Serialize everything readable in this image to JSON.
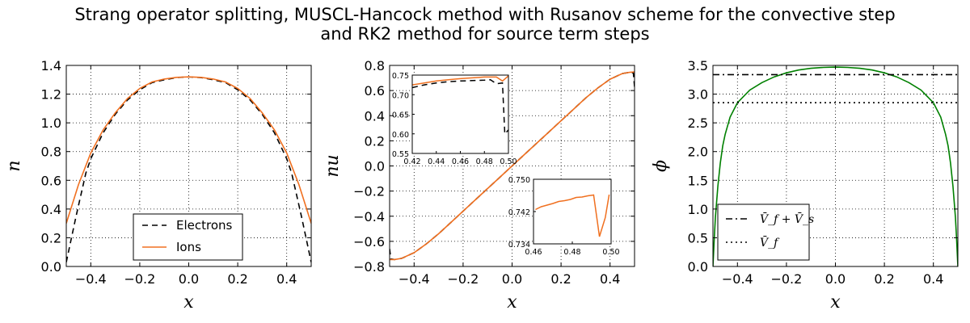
{
  "figure": {
    "title": "Strang operator splitting, MUSCL-Hancock method with Rusanov scheme for the convective step\nand RK2 method for source term steps"
  },
  "chart_data": [
    {
      "type": "line",
      "xlabel": "x",
      "ylabel": "n",
      "xlim": [
        -0.5,
        0.5
      ],
      "ylim": [
        0.0,
        1.4
      ],
      "xticks": [
        "−0.4",
        "−0.2",
        "0.0",
        "0.2",
        "0.4"
      ],
      "xtick_values": [
        -0.4,
        -0.2,
        0.0,
        0.2,
        0.4
      ],
      "yticks": [
        "0.0",
        "0.2",
        "0.4",
        "0.6",
        "0.8",
        "1.0",
        "1.2",
        "1.4"
      ],
      "ytick_values": [
        0.0,
        0.2,
        0.4,
        0.6,
        0.8,
        1.0,
        1.2,
        1.4
      ],
      "grid": true,
      "legend": {
        "position": "bottom-center",
        "entries": [
          "Electrons",
          "Ions"
        ]
      },
      "series": [
        {
          "name": "Electrons",
          "color": "#000000",
          "style": "dashed",
          "x": [
            -0.5,
            -0.46,
            -0.42,
            -0.4,
            -0.35,
            -0.3,
            -0.25,
            -0.2,
            -0.15,
            -0.1,
            -0.05,
            0.0,
            0.05,
            0.1,
            0.15,
            0.2,
            0.25,
            0.3,
            0.35,
            0.4,
            0.42,
            0.46,
            0.5
          ],
          "y": [
            0.03,
            0.35,
            0.65,
            0.75,
            0.93,
            1.06,
            1.16,
            1.23,
            1.28,
            1.3,
            1.315,
            1.32,
            1.315,
            1.3,
            1.28,
            1.23,
            1.16,
            1.06,
            0.93,
            0.75,
            0.65,
            0.35,
            0.03
          ]
        },
        {
          "name": "Ions",
          "color": "#f07020",
          "style": "solid",
          "x": [
            -0.5,
            -0.45,
            -0.4,
            -0.35,
            -0.3,
            -0.25,
            -0.2,
            -0.15,
            -0.1,
            -0.05,
            0.0,
            0.05,
            0.1,
            0.15,
            0.2,
            0.25,
            0.3,
            0.35,
            0.4,
            0.45,
            0.5
          ],
          "y": [
            0.3,
            0.57,
            0.79,
            0.95,
            1.07,
            1.17,
            1.24,
            1.285,
            1.305,
            1.317,
            1.32,
            1.317,
            1.305,
            1.285,
            1.24,
            1.17,
            1.07,
            0.95,
            0.79,
            0.57,
            0.3
          ]
        }
      ]
    },
    {
      "type": "line",
      "xlabel": "x",
      "ylabel": "nu",
      "xlim": [
        -0.5,
        0.5
      ],
      "ylim": [
        -0.8,
        0.8
      ],
      "xticks": [
        "−0.4",
        "−0.2",
        "0.0",
        "0.2",
        "0.4"
      ],
      "xtick_values": [
        -0.4,
        -0.2,
        0.0,
        0.2,
        0.4
      ],
      "yticks": [
        "−0.8",
        "−0.6",
        "−0.4",
        "−0.2",
        "0.0",
        "0.2",
        "0.4",
        "0.6",
        "0.8"
      ],
      "ytick_values": [
        -0.8,
        -0.6,
        -0.4,
        -0.2,
        0.0,
        0.2,
        0.4,
        0.6,
        0.8
      ],
      "grid": true,
      "series": [
        {
          "name": "Electrons",
          "color": "#000000",
          "style": "dashed",
          "x": [
            -0.5,
            -0.495,
            -0.48,
            -0.45,
            -0.4,
            -0.35,
            -0.3,
            -0.25,
            -0.2,
            -0.15,
            -0.1,
            -0.05,
            0.0,
            0.05,
            0.1,
            0.15,
            0.2,
            0.25,
            0.3,
            0.35,
            0.4,
            0.45,
            0.48,
            0.495,
            0.5
          ],
          "y": [
            -0.66,
            -0.74,
            -0.745,
            -0.735,
            -0.69,
            -0.62,
            -0.54,
            -0.45,
            -0.36,
            -0.27,
            -0.18,
            -0.09,
            0.0,
            0.09,
            0.18,
            0.27,
            0.36,
            0.45,
            0.54,
            0.62,
            0.69,
            0.735,
            0.745,
            0.74,
            0.63
          ]
        },
        {
          "name": "Ions",
          "color": "#f07020",
          "style": "solid",
          "x": [
            -0.5,
            -0.48,
            -0.45,
            -0.4,
            -0.35,
            -0.3,
            -0.25,
            -0.2,
            -0.15,
            -0.1,
            -0.05,
            0.0,
            0.05,
            0.1,
            0.15,
            0.2,
            0.25,
            0.3,
            0.35,
            0.4,
            0.45,
            0.48,
            0.5
          ],
          "y": [
            -0.745,
            -0.745,
            -0.735,
            -0.69,
            -0.62,
            -0.54,
            -0.45,
            -0.36,
            -0.27,
            -0.18,
            -0.09,
            0.0,
            0.09,
            0.18,
            0.27,
            0.36,
            0.45,
            0.54,
            0.62,
            0.69,
            0.735,
            0.745,
            0.748
          ]
        }
      ],
      "insets": [
        {
          "position": "top-left",
          "xlim": [
            0.42,
            0.5
          ],
          "ylim": [
            0.55,
            0.75
          ],
          "xticks": [
            "0.42",
            "0.44",
            "0.46",
            "0.48",
            "0.50"
          ],
          "xtick_values": [
            0.42,
            0.44,
            0.46,
            0.48,
            0.5
          ],
          "yticks": [
            "0.55",
            "0.60",
            "0.65",
            "0.70",
            "0.75"
          ],
          "ytick_values": [
            0.55,
            0.6,
            0.65,
            0.7,
            0.75
          ],
          "series": [
            {
              "name": "Electrons",
              "color": "#000000",
              "style": "dashed",
              "x": [
                0.42,
                0.43,
                0.44,
                0.45,
                0.46,
                0.47,
                0.48,
                0.485,
                0.49,
                0.495,
                0.497,
                0.5
              ],
              "y": [
                0.718,
                0.725,
                0.73,
                0.733,
                0.735,
                0.736,
                0.737,
                0.738,
                0.728,
                0.73,
                0.6,
                0.61
              ]
            },
            {
              "name": "Ions",
              "color": "#f07020",
              "style": "solid",
              "x": [
                0.42,
                0.43,
                0.44,
                0.45,
                0.46,
                0.47,
                0.48,
                0.485,
                0.49,
                0.495,
                0.5
              ],
              "y": [
                0.725,
                0.73,
                0.735,
                0.738,
                0.741,
                0.743,
                0.745,
                0.745,
                0.745,
                0.735,
                0.748
              ]
            }
          ]
        },
        {
          "position": "bottom-right",
          "xlim": [
            0.46,
            0.5
          ],
          "ylim": [
            0.734,
            0.75
          ],
          "xticks": [
            "0.46",
            "0.48",
            "0.50"
          ],
          "xtick_values": [
            0.46,
            0.48,
            0.5
          ],
          "yticks": [
            "0.734",
            "0.742",
            "0.750"
          ],
          "ytick_values": [
            0.734,
            0.742,
            0.75
          ],
          "series": [
            {
              "name": "Ions",
              "color": "#f07020",
              "style": "solid",
              "x": [
                0.461,
                0.464,
                0.467,
                0.47,
                0.473,
                0.476,
                0.479,
                0.482,
                0.485,
                0.488,
                0.491,
                0.494,
                0.497,
                0.499
              ],
              "y": [
                0.7425,
                0.7432,
                0.7436,
                0.744,
                0.7445,
                0.7447,
                0.745,
                0.7455,
                0.7456,
                0.7459,
                0.7461,
                0.7358,
                0.7405,
                0.7462
              ]
            }
          ]
        }
      ]
    },
    {
      "type": "line",
      "xlabel": "x",
      "ylabel": "ϕ",
      "xlim": [
        -0.5,
        0.5
      ],
      "ylim": [
        0.0,
        3.5
      ],
      "xticks": [
        "−0.4",
        "−0.2",
        "0.0",
        "0.2",
        "0.4"
      ],
      "xtick_values": [
        -0.4,
        -0.2,
        0.0,
        0.2,
        0.4
      ],
      "yticks": [
        "0.0",
        "0.5",
        "1.0",
        "1.5",
        "2.0",
        "2.5",
        "3.0",
        "3.5"
      ],
      "ytick_values": [
        0.0,
        0.5,
        1.0,
        1.5,
        2.0,
        2.5,
        3.0,
        3.5
      ],
      "grid": true,
      "legend": {
        "position": "bottom-left",
        "entries": [
          "V̄_f + V̄_s",
          "V̄_f"
        ]
      },
      "series": [
        {
          "name": "ϕ",
          "color": "#008000",
          "style": "solid",
          "x": [
            -0.5,
            -0.495,
            -0.49,
            -0.48,
            -0.47,
            -0.46,
            -0.45,
            -0.43,
            -0.4,
            -0.35,
            -0.3,
            -0.25,
            -0.2,
            -0.15,
            -0.1,
            -0.05,
            0.0,
            0.05,
            0.1,
            0.15,
            0.2,
            0.25,
            0.3,
            0.35,
            0.4,
            0.43,
            0.45,
            0.46,
            0.47,
            0.48,
            0.49,
            0.495,
            0.5
          ],
          "y": [
            0.0,
            0.45,
            0.85,
            1.4,
            1.8,
            2.1,
            2.3,
            2.6,
            2.85,
            3.07,
            3.2,
            3.3,
            3.37,
            3.42,
            3.45,
            3.465,
            3.47,
            3.465,
            3.45,
            3.42,
            3.37,
            3.3,
            3.2,
            3.07,
            2.85,
            2.6,
            2.3,
            2.1,
            1.8,
            1.4,
            0.85,
            0.45,
            0.0
          ]
        },
        {
          "name": "V̄_f + V̄_s",
          "color": "#000000",
          "style": "dashdot",
          "x": [
            -0.5,
            0.5
          ],
          "y": [
            3.34,
            3.34
          ]
        },
        {
          "name": "V̄_f",
          "color": "#000000",
          "style": "dotted",
          "x": [
            -0.5,
            0.5
          ],
          "y": [
            2.85,
            2.85
          ]
        }
      ]
    }
  ]
}
